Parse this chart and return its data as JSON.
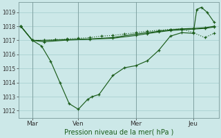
{
  "bg_color": "#cce8e8",
  "grid_color": "#aed4d4",
  "line_color": "#1a5c1a",
  "title": "Pression niveau de la mer( hPa )",
  "ylim": [
    1011.5,
    1019.7
  ],
  "yticks": [
    1012,
    1013,
    1014,
    1015,
    1016,
    1017,
    1018,
    1019
  ],
  "xlim": [
    -0.1,
    8.6
  ],
  "day_labels": [
    "Mar",
    "Ven",
    "Mer",
    "Jeu"
  ],
  "day_positions": [
    0.5,
    2.5,
    5.0,
    7.5
  ],
  "vline_positions": [
    0.5,
    2.5,
    5.0,
    7.5
  ],
  "line1_x": [
    0.0,
    0.5,
    0.9,
    1.3,
    1.7,
    2.1,
    2.5,
    2.9,
    3.1,
    3.4,
    4.0,
    4.5,
    5.0,
    5.5,
    6.0,
    6.5,
    7.0,
    7.5,
    7.65,
    7.85,
    8.1,
    8.4
  ],
  "line1_y": [
    1018.0,
    1017.0,
    1016.6,
    1015.5,
    1014.0,
    1012.5,
    1012.1,
    1012.8,
    1013.0,
    1013.15,
    1014.5,
    1015.05,
    1015.2,
    1015.55,
    1016.3,
    1017.3,
    1017.55,
    1017.5,
    1019.2,
    1019.35,
    1019.0,
    1018.3
  ],
  "line1_style": "-",
  "line2_x": [
    0.0,
    0.5,
    1.0,
    1.5,
    2.0,
    2.5,
    3.0,
    3.5,
    4.0,
    4.5,
    5.0,
    5.5,
    6.0,
    6.5,
    7.0,
    7.5,
    8.0,
    8.4
  ],
  "line2_y": [
    1018.0,
    1017.0,
    1017.0,
    1017.05,
    1017.1,
    1017.15,
    1017.2,
    1017.3,
    1017.35,
    1017.45,
    1017.55,
    1017.65,
    1017.72,
    1017.78,
    1017.82,
    1017.55,
    1017.2,
    1017.5
  ],
  "line2_style": ":",
  "line3_x": [
    0.0,
    0.5,
    1.0,
    2.0,
    3.0,
    4.0,
    5.0,
    5.5,
    6.0,
    6.5,
    7.0,
    7.5,
    8.0,
    8.4
  ],
  "line3_y": [
    1018.0,
    1017.0,
    1017.0,
    1017.05,
    1017.1,
    1017.2,
    1017.45,
    1017.55,
    1017.65,
    1017.75,
    1017.82,
    1017.85,
    1017.9,
    1018.0
  ],
  "line3_style": "-",
  "line4_x": [
    0.0,
    0.5,
    1.0,
    2.0,
    3.0,
    4.0,
    5.0,
    5.5,
    6.0,
    6.5,
    7.0,
    7.5,
    8.0,
    8.4
  ],
  "line4_y": [
    1018.0,
    1017.0,
    1016.9,
    1017.02,
    1017.08,
    1017.15,
    1017.35,
    1017.48,
    1017.6,
    1017.7,
    1017.75,
    1017.8,
    1017.85,
    1017.95
  ],
  "line4_style": "-"
}
